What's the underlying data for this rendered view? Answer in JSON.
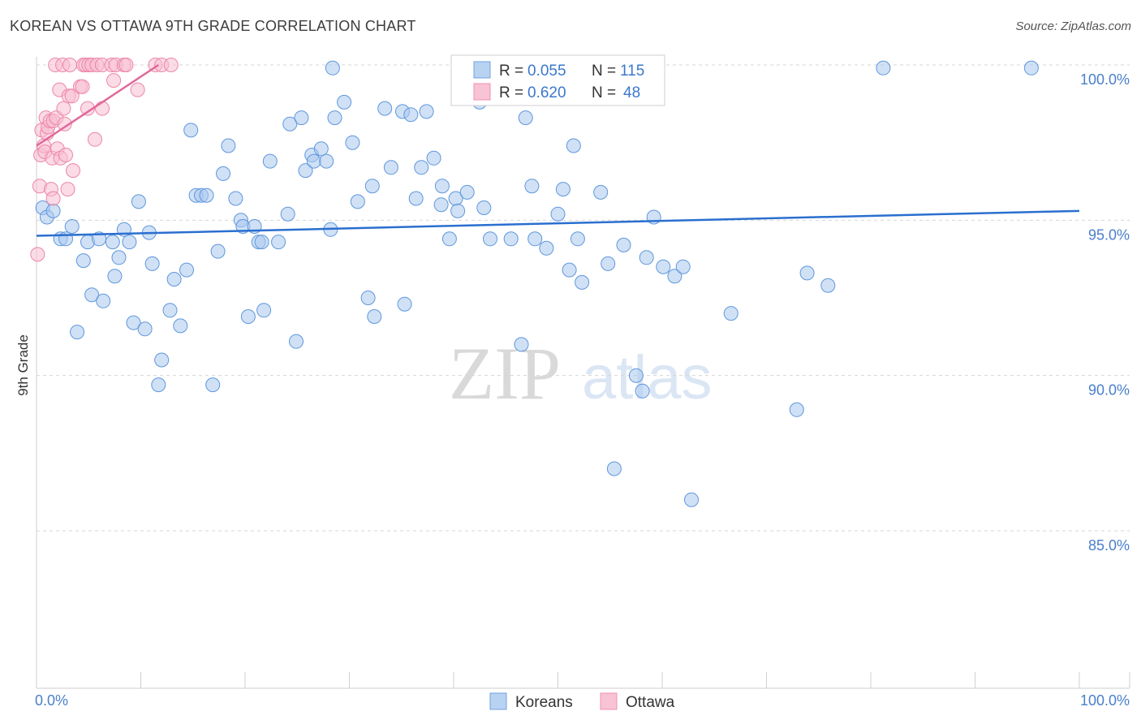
{
  "title": "KOREAN VS OTTAWA 9TH GRADE CORRELATION CHART",
  "source": "Source: ZipAtlas.com",
  "colors": {
    "koreans": "#6fa3e0",
    "koreans_line": "#2a6fcf",
    "ottawa": "#f08fb0",
    "ottawa_line": "#e0689a",
    "axis_text": "#4a7fcb"
  },
  "watermark": {
    "zip": "ZIP",
    "atlas": "atlas"
  },
  "legend": {
    "r_label": "R =",
    "n_label": "N =",
    "koreans": {
      "r": "0.055",
      "n": "115"
    },
    "ottawa": {
      "r": "0.620",
      "n": "48"
    }
  },
  "bottom_legend": {
    "koreans": "Koreans",
    "ottawa": "Ottawa"
  },
  "chart_data": {
    "type": "scatter",
    "title": "KOREAN VS OTTAWA 9TH GRADE CORRELATION CHART",
    "xlabel": "",
    "ylabel": "9th Grade",
    "xlim": [
      0,
      100
    ],
    "ylim": [
      80.5,
      100.5
    ],
    "x_tick_labels": [
      "0.0%",
      "100.0%"
    ],
    "y_ticks": [
      85,
      90,
      95,
      100
    ],
    "y_tick_labels": [
      "85.0%",
      "90.0%",
      "95.0%",
      "100.0%"
    ],
    "grid": true,
    "series": [
      {
        "name": "Koreans",
        "r": 0.055,
        "n": 115,
        "trend": {
          "x": [
            0,
            100
          ],
          "y": [
            94.5,
            95.3
          ]
        },
        "points": [
          [
            0.6,
            95.4
          ],
          [
            1.0,
            95.1
          ],
          [
            1.6,
            95.3
          ],
          [
            2.3,
            94.4
          ],
          [
            2.8,
            94.4
          ],
          [
            3.4,
            94.8
          ],
          [
            3.9,
            91.4
          ],
          [
            4.5,
            93.7
          ],
          [
            4.9,
            94.3
          ],
          [
            5.3,
            92.6
          ],
          [
            6.0,
            94.4
          ],
          [
            6.4,
            92.4
          ],
          [
            7.3,
            94.3
          ],
          [
            7.5,
            93.2
          ],
          [
            7.9,
            93.8
          ],
          [
            8.4,
            94.7
          ],
          [
            8.9,
            94.3
          ],
          [
            9.3,
            91.7
          ],
          [
            9.8,
            95.6
          ],
          [
            10.4,
            91.5
          ],
          [
            10.8,
            94.6
          ],
          [
            11.1,
            93.6
          ],
          [
            11.7,
            89.7
          ],
          [
            12.0,
            90.5
          ],
          [
            12.8,
            92.1
          ],
          [
            13.2,
            93.1
          ],
          [
            13.8,
            91.6
          ],
          [
            14.4,
            93.4
          ],
          [
            14.8,
            97.9
          ],
          [
            15.3,
            95.8
          ],
          [
            15.8,
            95.8
          ],
          [
            16.3,
            95.8
          ],
          [
            16.9,
            89.7
          ],
          [
            17.4,
            94.0
          ],
          [
            17.9,
            96.5
          ],
          [
            18.4,
            97.4
          ],
          [
            19.1,
            95.7
          ],
          [
            19.6,
            95.0
          ],
          [
            19.8,
            94.8
          ],
          [
            20.3,
            91.9
          ],
          [
            20.9,
            94.8
          ],
          [
            21.3,
            94.3
          ],
          [
            21.6,
            94.3
          ],
          [
            22.4,
            96.9
          ],
          [
            23.2,
            94.3
          ],
          [
            24.1,
            95.2
          ],
          [
            24.3,
            98.1
          ],
          [
            24.9,
            91.1
          ],
          [
            25.4,
            98.3
          ],
          [
            25.8,
            96.6
          ],
          [
            26.4,
            97.1
          ],
          [
            26.6,
            96.9
          ],
          [
            27.3,
            97.3
          ],
          [
            27.8,
            96.9
          ],
          [
            28.2,
            94.7
          ],
          [
            28.6,
            98.3
          ],
          [
            29.5,
            98.8
          ],
          [
            30.3,
            97.5
          ],
          [
            30.8,
            95.6
          ],
          [
            31.8,
            92.5
          ],
          [
            32.2,
            96.1
          ],
          [
            32.4,
            91.9
          ],
          [
            33.4,
            98.6
          ],
          [
            34.0,
            96.7
          ],
          [
            35.1,
            98.5
          ],
          [
            35.3,
            92.3
          ],
          [
            35.9,
            98.4
          ],
          [
            36.4,
            95.7
          ],
          [
            36.9,
            96.7
          ],
          [
            37.4,
            98.5
          ],
          [
            38.1,
            97.0
          ],
          [
            38.8,
            95.5
          ],
          [
            38.9,
            96.1
          ],
          [
            39.6,
            94.4
          ],
          [
            40.2,
            95.7
          ],
          [
            40.4,
            95.3
          ],
          [
            41.0,
            99.9
          ],
          [
            41.3,
            95.9
          ],
          [
            42.5,
            98.8
          ],
          [
            42.9,
            95.4
          ],
          [
            43.5,
            94.4
          ],
          [
            45.5,
            94.4
          ],
          [
            46.5,
            91.0
          ],
          [
            46.9,
            98.3
          ],
          [
            47.5,
            96.1
          ],
          [
            47.8,
            94.4
          ],
          [
            48.9,
            94.1
          ],
          [
            50.0,
            95.2
          ],
          [
            50.5,
            96.0
          ],
          [
            51.1,
            93.4
          ],
          [
            51.5,
            97.4
          ],
          [
            51.9,
            94.4
          ],
          [
            52.3,
            93.0
          ],
          [
            54.1,
            95.9
          ],
          [
            54.8,
            93.6
          ],
          [
            55.4,
            87.0
          ],
          [
            56.3,
            94.2
          ],
          [
            57.5,
            90.0
          ],
          [
            58.1,
            89.5
          ],
          [
            58.5,
            93.8
          ],
          [
            59.2,
            95.1
          ],
          [
            60.1,
            93.5
          ],
          [
            61.2,
            93.2
          ],
          [
            62.0,
            93.5
          ],
          [
            62.8,
            86.0
          ],
          [
            66.6,
            92.0
          ],
          [
            72.9,
            88.9
          ],
          [
            73.9,
            93.3
          ],
          [
            75.9,
            92.9
          ],
          [
            81.2,
            99.9
          ],
          [
            95.4,
            99.9
          ],
          [
            21.8,
            92.1
          ],
          [
            28.4,
            99.9
          ]
        ]
      },
      {
        "name": "Ottawa",
        "r": 0.62,
        "n": 48,
        "trend": {
          "x": [
            0,
            11.7
          ],
          "y": [
            97.4,
            100.0
          ]
        },
        "points": [
          [
            0.1,
            93.9
          ],
          [
            0.3,
            96.1
          ],
          [
            0.4,
            97.1
          ],
          [
            0.5,
            97.9
          ],
          [
            0.7,
            97.4
          ],
          [
            0.8,
            97.2
          ],
          [
            0.9,
            98.3
          ],
          [
            1.0,
            97.8
          ],
          [
            1.1,
            98.0
          ],
          [
            1.3,
            98.2
          ],
          [
            1.4,
            96.0
          ],
          [
            1.5,
            97.0
          ],
          [
            1.6,
            98.2
          ],
          [
            1.6,
            95.7
          ],
          [
            1.8,
            100.0
          ],
          [
            1.9,
            98.3
          ],
          [
            2.0,
            97.3
          ],
          [
            2.2,
            99.2
          ],
          [
            2.3,
            97.0
          ],
          [
            2.5,
            100.0
          ],
          [
            2.6,
            98.6
          ],
          [
            2.7,
            98.1
          ],
          [
            2.8,
            97.1
          ],
          [
            3.0,
            96.0
          ],
          [
            3.1,
            99.0
          ],
          [
            3.2,
            100.0
          ],
          [
            3.4,
            99.0
          ],
          [
            3.5,
            96.6
          ],
          [
            4.2,
            99.3
          ],
          [
            4.4,
            99.3
          ],
          [
            4.5,
            100.0
          ],
          [
            4.7,
            100.0
          ],
          [
            4.9,
            98.6
          ],
          [
            5.0,
            100.0
          ],
          [
            5.3,
            100.0
          ],
          [
            5.6,
            97.6
          ],
          [
            5.8,
            100.0
          ],
          [
            6.3,
            100.0
          ],
          [
            6.3,
            98.6
          ],
          [
            7.2,
            100.0
          ],
          [
            7.4,
            99.5
          ],
          [
            7.6,
            100.0
          ],
          [
            8.4,
            100.0
          ],
          [
            8.6,
            100.0
          ],
          [
            9.7,
            99.2
          ],
          [
            11.4,
            100.0
          ],
          [
            12.0,
            100.0
          ],
          [
            12.9,
            100.0
          ]
        ]
      }
    ]
  }
}
